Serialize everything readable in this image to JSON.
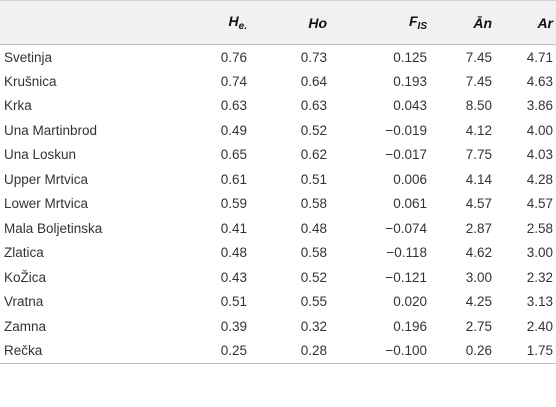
{
  "table": {
    "headers": {
      "he_main": "H",
      "he_sub": "e.",
      "ho": "Ho",
      "fis_main": "F",
      "fis_sub": "IS",
      "an": "Ān",
      "ar": "Ar"
    },
    "rows": [
      {
        "population": "Svetinja",
        "he": "0.76",
        "ho": "0.73",
        "fis": "0.125",
        "an": "7.45",
        "ar": "4.71"
      },
      {
        "population": "Krušnica",
        "he": "0.74",
        "ho": "0.64",
        "fis": "0.193",
        "an": "7.45",
        "ar": "4.63"
      },
      {
        "population": "Krka",
        "he": "0.63",
        "ho": "0.63",
        "fis": "0.043",
        "an": "8.50",
        "ar": "3.86"
      },
      {
        "population": "Una Martinbrod",
        "he": "0.49",
        "ho": "0.52",
        "fis": "−0.019",
        "an": "4.12",
        "ar": "4.00"
      },
      {
        "population": "Una Loskun",
        "he": "0.65",
        "ho": "0.62",
        "fis": "−0.017",
        "an": "7.75",
        "ar": "4.03"
      },
      {
        "population": "Upper Mrtvica",
        "he": "0.61",
        "ho": "0.51",
        "fis": "0.006",
        "an": "4.14",
        "ar": "4.28"
      },
      {
        "population": "Lower Mrtvica",
        "he": "0.59",
        "ho": "0.58",
        "fis": "0.061",
        "an": "4.57",
        "ar": "4.57"
      },
      {
        "population": "Mala Boljetinska",
        "he": "0.41",
        "ho": "0.48",
        "fis": "−0.074",
        "an": "2.87",
        "ar": "2.58"
      },
      {
        "population": "Zlatica",
        "he": "0.48",
        "ho": "0.58",
        "fis": "−0.118",
        "an": "4.62",
        "ar": "3.00"
      },
      {
        "population": "KoŽica",
        "he": "0.43",
        "ho": "0.52",
        "fis": "−0.121",
        "an": "3.00",
        "ar": "2.32"
      },
      {
        "population": "Vratna",
        "he": "0.51",
        "ho": "0.55",
        "fis": "0.020",
        "an": "4.25",
        "ar": "3.13"
      },
      {
        "population": "Zamna",
        "he": "0.39",
        "ho": "0.32",
        "fis": "0.196",
        "an": "2.75",
        "ar": "2.40"
      },
      {
        "population": "Rečka",
        "he": "0.25",
        "ho": "0.28",
        "fis": "−0.100",
        "an": "0.26",
        "ar": "1.75"
      }
    ]
  }
}
